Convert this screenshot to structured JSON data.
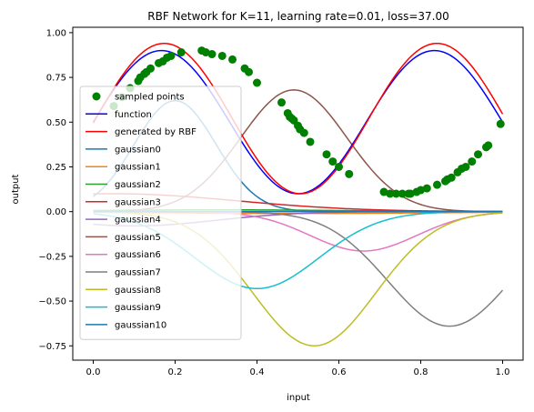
{
  "chart_data": {
    "type": "line",
    "title": "RBF Network for K=11, learning rate=0.01, loss=37.00",
    "xlabel": "input",
    "ylabel": "output",
    "xlim": [
      -0.05,
      1.05
    ],
    "ylim": [
      -0.83,
      1.03
    ],
    "xticks": [
      0.0,
      0.2,
      0.4,
      0.6,
      0.8,
      1.0
    ],
    "xtick_labels": [
      "0.0",
      "0.2",
      "0.4",
      "0.6",
      "0.8",
      "1.0"
    ],
    "yticks": [
      -0.75,
      -0.5,
      -0.25,
      0.0,
      0.25,
      0.5,
      0.75,
      1.0
    ],
    "ytick_labels": [
      "−0.75",
      "−0.50",
      "−0.25",
      "0.00",
      "0.25",
      "0.50",
      "0.75",
      "1.00"
    ],
    "grid": false,
    "legend_position": "upper-left",
    "scatter": {
      "name": "sampled points",
      "color": "#008000",
      "x": [
        0.05,
        0.07,
        0.09,
        0.11,
        0.115,
        0.125,
        0.13,
        0.14,
        0.16,
        0.17,
        0.18,
        0.19,
        0.215,
        0.265,
        0.275,
        0.29,
        0.315,
        0.34,
        0.37,
        0.38,
        0.4,
        0.46,
        0.475,
        0.48,
        0.485,
        0.49,
        0.5,
        0.505,
        0.515,
        0.53,
        0.57,
        0.585,
        0.6,
        0.625,
        0.71,
        0.725,
        0.74,
        0.755,
        0.77,
        0.775,
        0.79,
        0.8,
        0.815,
        0.84,
        0.86,
        0.865,
        0.875,
        0.89,
        0.9,
        0.91,
        0.925,
        0.94,
        0.96,
        0.965,
        0.995
      ],
      "y": [
        0.59,
        0.64,
        0.69,
        0.73,
        0.75,
        0.77,
        0.78,
        0.8,
        0.83,
        0.84,
        0.86,
        0.87,
        0.89,
        0.9,
        0.89,
        0.88,
        0.87,
        0.85,
        0.8,
        0.78,
        0.72,
        0.61,
        0.55,
        0.53,
        0.52,
        0.51,
        0.48,
        0.46,
        0.44,
        0.39,
        0.32,
        0.28,
        0.25,
        0.21,
        0.11,
        0.1,
        0.1,
        0.1,
        0.1,
        0.1,
        0.11,
        0.12,
        0.13,
        0.15,
        0.17,
        0.18,
        0.19,
        0.22,
        0.24,
        0.25,
        0.28,
        0.32,
        0.36,
        0.37,
        0.49
      ]
    },
    "function_line": {
      "name": "function",
      "color": "#0000ff",
      "amplitude": 0.4,
      "offset": 0.5,
      "frequency": 1.5
    },
    "rbf_line": {
      "name": "generated by RBF",
      "color": "#ff0000"
    },
    "gaussians": [
      {
        "name": "gaussian0",
        "color": "#1f77b4",
        "amplitude": 0.62,
        "center": 0.2,
        "width": 0.1
      },
      {
        "name": "gaussian1",
        "color": "#ff7f0e",
        "amplitude": -0.01,
        "center": 0.5,
        "width": 0.35
      },
      {
        "name": "gaussian2",
        "color": "#2ca02c",
        "amplitude": 0.01,
        "center": 0.3,
        "width": 0.3
      },
      {
        "name": "gaussian3",
        "color": "#d62728",
        "amplitude": 0.1,
        "center": 0.05,
        "width": 0.3
      },
      {
        "name": "gaussian4",
        "color": "#9467bd",
        "amplitude": -0.08,
        "center": 0.1,
        "width": 0.2
      },
      {
        "name": "gaussian5",
        "color": "#8c564b",
        "amplitude": 0.68,
        "center": 0.49,
        "width": 0.13
      },
      {
        "name": "gaussian6",
        "color": "#e377c2",
        "amplitude": -0.22,
        "center": 0.66,
        "width": 0.13
      },
      {
        "name": "gaussian7",
        "color": "#7f7f7f",
        "amplitude": -0.64,
        "center": 0.87,
        "width": 0.15
      },
      {
        "name": "gaussian8",
        "color": "#bcbd22",
        "amplitude": -0.75,
        "center": 0.54,
        "width": 0.15
      },
      {
        "name": "gaussian9",
        "color": "#17becf",
        "amplitude": -0.43,
        "center": 0.4,
        "width": 0.15
      },
      {
        "name": "gaussian10",
        "color": "#1f77b4",
        "amplitude": 0.0,
        "center": 0.5,
        "width": 0.3
      }
    ],
    "series": [
      {
        "name": "function",
        "color": "#0000ff"
      },
      {
        "name": "generated by RBF",
        "color": "#ff0000"
      },
      {
        "name": "gaussian0",
        "color": "#1f77b4"
      },
      {
        "name": "gaussian1",
        "color": "#ff7f0e"
      },
      {
        "name": "gaussian2",
        "color": "#2ca02c"
      },
      {
        "name": "gaussian3",
        "color": "#d62728"
      },
      {
        "name": "gaussian4",
        "color": "#9467bd"
      },
      {
        "name": "gaussian5",
        "color": "#8c564b"
      },
      {
        "name": "gaussian6",
        "color": "#e377c2"
      },
      {
        "name": "gaussian7",
        "color": "#7f7f7f"
      },
      {
        "name": "gaussian8",
        "color": "#bcbd22"
      },
      {
        "name": "gaussian9",
        "color": "#17becf"
      },
      {
        "name": "gaussian10",
        "color": "#1f77b4"
      }
    ]
  }
}
